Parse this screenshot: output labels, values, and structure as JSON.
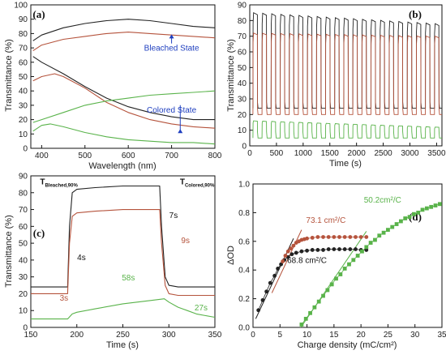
{
  "figure": {
    "panels": [
      "(a)",
      "(b)",
      "(c)",
      "(d)"
    ]
  },
  "colors": {
    "black": "#222222",
    "brown": "#b5533c",
    "green": "#59b34a",
    "annotation_blue": "#1f3fbf"
  },
  "chart_data": [
    {
      "panel": "(a)",
      "type": "line",
      "xlabel": "Wavelength (nm)",
      "ylabel": "Transmittance (%)",
      "xlim": [
        375,
        800
      ],
      "ylim": [
        0,
        100
      ],
      "xticks": [
        400,
        500,
        600,
        700,
        800
      ],
      "yticks": [
        0,
        10,
        20,
        30,
        40,
        50,
        60,
        70,
        80,
        90,
        100
      ],
      "annotations": [
        {
          "text": "Bleached State",
          "x": 700,
          "y": 68,
          "arrow_to": [
            700,
            80
          ],
          "color": "#1f3fbf"
        },
        {
          "text": "Colored State",
          "x": 700,
          "y": 25,
          "arrow_to": [
            720,
            14
          ],
          "color": "#1f3fbf"
        }
      ],
      "series": [
        {
          "color": "#222222",
          "x": [
            380,
            400,
            450,
            500,
            550,
            600,
            650,
            700,
            750,
            800
          ],
          "y": [
            75,
            79,
            84,
            87,
            89,
            90,
            89,
            87,
            85,
            84
          ]
        },
        {
          "color": "#222222",
          "x": [
            380,
            400,
            450,
            500,
            550,
            600,
            650,
            700,
            750,
            800
          ],
          "y": [
            64,
            60,
            52,
            43,
            35,
            29,
            25,
            22,
            20,
            20
          ]
        },
        {
          "color": "#b5533c",
          "x": [
            380,
            400,
            450,
            500,
            550,
            600,
            650,
            700,
            750,
            800
          ],
          "y": [
            68,
            72,
            76,
            78,
            80,
            81,
            80,
            79,
            78,
            77
          ]
        },
        {
          "color": "#b5533c",
          "x": [
            380,
            400,
            430,
            450,
            500,
            550,
            600,
            650,
            700,
            750,
            800
          ],
          "y": [
            47,
            50,
            52,
            50,
            42,
            32,
            25,
            20,
            17,
            15,
            14
          ]
        },
        {
          "color": "#59b34a",
          "x": [
            380,
            400,
            450,
            500,
            550,
            600,
            650,
            700,
            750,
            800
          ],
          "y": [
            18,
            20,
            25,
            30,
            33,
            35,
            37,
            38,
            39,
            40
          ]
        },
        {
          "color": "#59b34a",
          "x": [
            380,
            400,
            420,
            450,
            500,
            550,
            600,
            650,
            700,
            750,
            800
          ],
          "y": [
            12,
            16,
            17,
            15,
            11,
            8,
            6,
            5,
            4,
            4,
            3
          ]
        }
      ]
    },
    {
      "panel": "(b)",
      "type": "line",
      "xlabel": "Time (s)",
      "ylabel": "Transmittance (%)",
      "xlim": [
        0,
        3600
      ],
      "ylim": [
        0,
        90
      ],
      "xticks": [
        0,
        500,
        1000,
        1500,
        2000,
        2500,
        3000,
        3500
      ],
      "yticks": [
        0,
        10,
        20,
        30,
        40,
        50,
        60,
        70,
        80,
        90
      ],
      "cycle_period": 170,
      "cycle_count": 21,
      "series": [
        {
          "color": "#222222",
          "bleached_start": 85,
          "bleached_end": 78,
          "colored": 24
        },
        {
          "color": "#b5533c",
          "bleached_start": 72,
          "bleached_end": 70,
          "colored": 20
        },
        {
          "color": "#59b34a",
          "bleached_start": 16,
          "bleached_end": 12,
          "colored": 5
        }
      ]
    },
    {
      "panel": "(c)",
      "type": "line",
      "xlabel": "Time (s)",
      "ylabel": "Transmittance (%)",
      "xlim": [
        150,
        350
      ],
      "ylim": [
        0,
        90
      ],
      "xticks": [
        150,
        200,
        250,
        300,
        350
      ],
      "yticks": [
        0,
        10,
        20,
        30,
        40,
        50,
        60,
        70,
        80,
        90
      ],
      "annotations": [
        {
          "text": "T",
          "sub": "Bleached,90%",
          "x": 160,
          "y": 85,
          "color": "#111111"
        },
        {
          "text": "T",
          "sub": "Colored,90%",
          "x": 312,
          "y": 85,
          "color": "#111111"
        },
        {
          "text": "7s",
          "x": 305,
          "y": 65,
          "color": "#111111"
        },
        {
          "text": "9s",
          "x": 318,
          "y": 50,
          "color": "#b5533c"
        },
        {
          "text": "4s",
          "x": 205,
          "y": 40,
          "color": "#111111"
        },
        {
          "text": "3s",
          "x": 186,
          "y": 16,
          "color": "#b5533c"
        },
        {
          "text": "58s",
          "x": 256,
          "y": 28,
          "color": "#59b34a"
        },
        {
          "text": "27s",
          "x": 335,
          "y": 10,
          "color": "#59b34a"
        }
      ],
      "series": [
        {
          "color": "#222222",
          "x": [
            150,
            190,
            192,
            195,
            200,
            220,
            250,
            290,
            292,
            296,
            300,
            310,
            330,
            350
          ],
          "y": [
            24,
            24,
            60,
            80,
            82,
            83,
            84,
            84,
            60,
            30,
            25,
            24,
            24,
            24
          ]
        },
        {
          "color": "#b5533c",
          "x": [
            150,
            190,
            192,
            195,
            200,
            220,
            250,
            290,
            292,
            296,
            300,
            310,
            330,
            350
          ],
          "y": [
            20,
            20,
            50,
            66,
            68,
            69,
            70,
            70,
            50,
            25,
            20,
            19,
            19,
            19
          ]
        },
        {
          "color": "#59b34a",
          "x": [
            150,
            190,
            195,
            200,
            220,
            250,
            280,
            295,
            300,
            310,
            320,
            330,
            340,
            350
          ],
          "y": [
            5,
            5,
            8,
            9,
            11,
            14,
            16,
            17,
            15,
            12,
            10,
            8,
            7,
            6
          ]
        }
      ]
    },
    {
      "panel": "(d)",
      "type": "scatter",
      "xlabel": "Charge density (mC/cm²)",
      "ylabel": "ΔOD",
      "xlim": [
        0,
        35
      ],
      "ylim": [
        0,
        1.0
      ],
      "xticks": [
        0,
        5,
        10,
        15,
        20,
        25,
        30,
        35
      ],
      "yticks": [
        0,
        0.2,
        0.4,
        0.6,
        0.8,
        1.0
      ],
      "annotations": [
        {
          "text": "73.1 cm²/C",
          "x": 13.5,
          "y": 0.73,
          "color": "#b5533c"
        },
        {
          "text": "68.8 cm²/C",
          "x": 10,
          "y": 0.45,
          "color": "#111111"
        },
        {
          "text": "50.2cm²/C",
          "x": 24,
          "y": 0.87,
          "color": "#59b34a"
        }
      ],
      "series": [
        {
          "color": "#222222",
          "marker": "circle",
          "x": [
            1,
            1.8,
            2.5,
            3.2,
            4,
            4.6,
            5.2,
            5.8,
            6.5,
            7.2,
            8,
            9,
            10,
            11,
            12,
            13,
            14,
            15,
            16,
            17,
            18,
            19,
            20,
            21
          ],
          "y": [
            0.12,
            0.19,
            0.25,
            0.31,
            0.36,
            0.41,
            0.44,
            0.47,
            0.49,
            0.51,
            0.52,
            0.53,
            0.535,
            0.54,
            0.54,
            0.54,
            0.545,
            0.545,
            0.545,
            0.545,
            0.545,
            0.545,
            0.54,
            0.54
          ]
        },
        {
          "color": "#b5533c",
          "marker": "circle",
          "x": [
            5.5,
            6,
            6.5,
            7,
            7.5,
            8,
            8.5,
            9,
            9.5,
            10,
            11,
            12,
            13,
            14,
            15,
            16,
            17,
            18,
            19,
            20,
            21
          ],
          "y": [
            0.46,
            0.5,
            0.53,
            0.55,
            0.57,
            0.59,
            0.6,
            0.61,
            0.615,
            0.62,
            0.625,
            0.63,
            0.63,
            0.63,
            0.63,
            0.63,
            0.63,
            0.63,
            0.63,
            0.63,
            0.63
          ]
        },
        {
          "color": "#59b34a",
          "marker": "square",
          "x": [
            9,
            9.8,
            10.6,
            11.4,
            12.2,
            13,
            13.8,
            14.6,
            15.4,
            16.2,
            17,
            17.8,
            18.6,
            19.4,
            20.2,
            21,
            21.8,
            22.6,
            23.4,
            24.2,
            25,
            25.8,
            26.6,
            27.4,
            28.2,
            29,
            29.8,
            30.6,
            31.4,
            32.2,
            33,
            33.8,
            34.6
          ],
          "y": [
            0.02,
            0.06,
            0.1,
            0.14,
            0.18,
            0.22,
            0.26,
            0.3,
            0.34,
            0.37,
            0.41,
            0.44,
            0.47,
            0.5,
            0.53,
            0.56,
            0.59,
            0.61,
            0.64,
            0.66,
            0.68,
            0.7,
            0.72,
            0.74,
            0.76,
            0.77,
            0.79,
            0.8,
            0.82,
            0.83,
            0.84,
            0.85,
            0.86
          ]
        }
      ],
      "fit_lines": [
        {
          "color": "#222222",
          "x": [
            0.5,
            7.5
          ],
          "y": [
            0.06,
            0.62
          ]
        },
        {
          "color": "#b5533c",
          "x": [
            3.5,
            9
          ],
          "y": [
            0.24,
            0.68
          ]
        },
        {
          "color": "#59b34a",
          "x": [
            8.5,
            21
          ],
          "y": [
            -0.02,
            0.67
          ]
        }
      ]
    }
  ]
}
